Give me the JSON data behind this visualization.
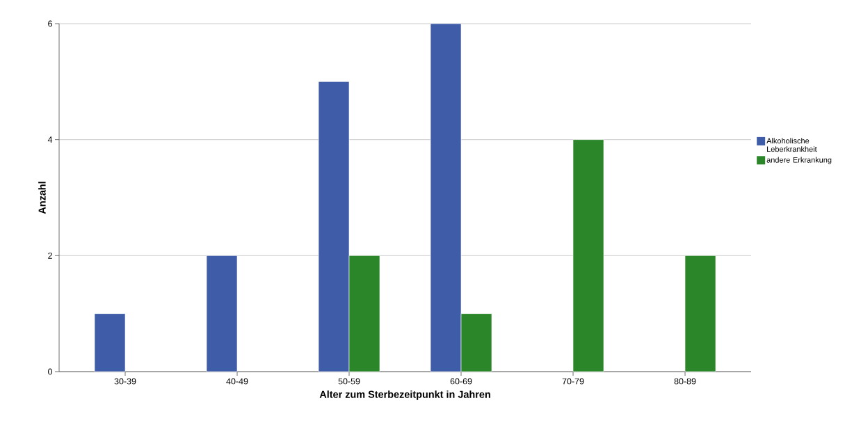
{
  "chart_data": {
    "type": "bar",
    "xlabel": "Alter zum Sterbezeitpunkt in Jahren",
    "ylabel": "Anzahl",
    "categories": [
      "30-39",
      "40-49",
      "50-59",
      "60-69",
      "70-79",
      "80-89"
    ],
    "series": [
      {
        "name": "Alkoholische Leberkrankheit",
        "color": "#3f5ca9",
        "values": [
          1,
          2,
          5,
          6,
          null,
          null
        ]
      },
      {
        "name": "andere Erkrankung",
        "color": "#2a8629",
        "values": [
          null,
          null,
          2,
          1,
          4,
          2
        ]
      }
    ],
    "ylim": [
      0,
      6
    ],
    "yticks": [
      0,
      2,
      4,
      6
    ],
    "grid": "y",
    "legend": "right"
  }
}
